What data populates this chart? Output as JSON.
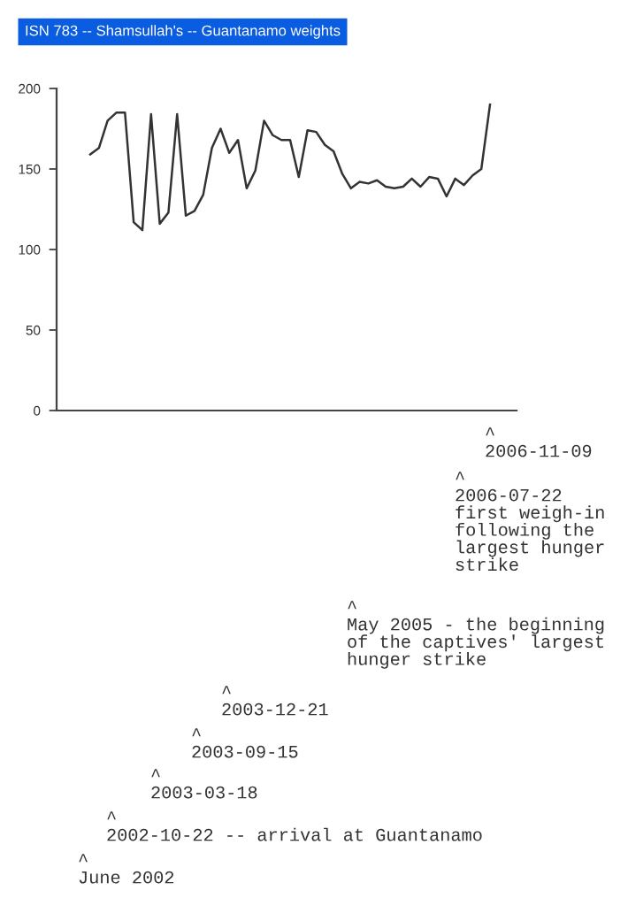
{
  "chart_data": {
    "type": "line",
    "title": "ISN 783 -- Shamsullah's -- Guantanamo weights",
    "categories": [
      null,
      null,
      null,
      null,
      null,
      null,
      null,
      null,
      null,
      null,
      null,
      null,
      null,
      null,
      null,
      null,
      null,
      null,
      null,
      null,
      null,
      null,
      null,
      null,
      null,
      null,
      null,
      null,
      null,
      null,
      null,
      null,
      null,
      null,
      null,
      null,
      null,
      null,
      null,
      null,
      null,
      null,
      null,
      null,
      null,
      null,
      null
    ],
    "series": [
      {
        "color": "#333333",
        "values": [
          159,
          163,
          180,
          185,
          185,
          117,
          112,
          184,
          116,
          123,
          184,
          121,
          124,
          134,
          163,
          175,
          160,
          168,
          138,
          149,
          180,
          171,
          168,
          168,
          145,
          174,
          173,
          165,
          161,
          147,
          138,
          142,
          141,
          143,
          139,
          138,
          139,
          144,
          139,
          145,
          144,
          133,
          144,
          140,
          146,
          150,
          190
        ]
      }
    ],
    "ylim": [
      0,
      200
    ],
    "yticks": [
      0,
      50,
      100,
      150,
      200
    ],
    "grid": false,
    "legend": false,
    "annotations": [
      "^\n2006-11-09",
      "^\n2006-07-22\nfirst weigh-in\nfollowing the\nlargest hunger\nstrike",
      "^\nMay 2005 - the beginning\nof the captives' largest\nhunger strike",
      "^\n2003-12-21",
      "^\n2003-09-15",
      "^\n2003-03-18",
      "^\n2002-10-22 -- arrival at Guantanamo",
      "^\nJune 2002"
    ]
  }
}
